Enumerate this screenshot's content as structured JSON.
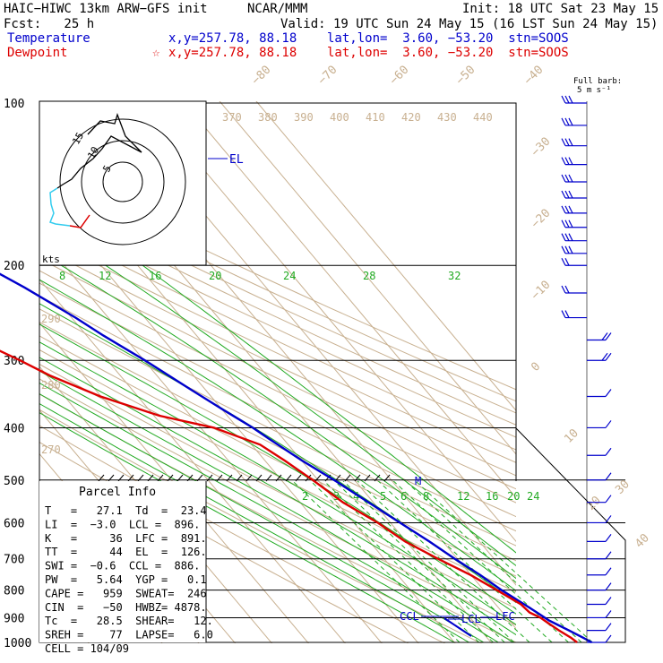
{
  "header": {
    "model": "HAIC−HIWC 13km ARW−GFS init",
    "org": "NCAR/MMM",
    "init": "Init: 18 UTC Sat 23 May 15",
    "fcst": "Fcst:   25 h",
    "valid": "Valid: 19 UTC Sun 24 May 15 (16 LST Sun 24 May 15)",
    "temp_label": "Temperature",
    "temp_loc": "x,y=257.78, 88.18    lat,lon=  3.60, −53.20  stn=SOOS",
    "dew_label": "Dewpoint",
    "dew_marker": "☆",
    "dew_loc": "x,y=257.78, 88.18    lat,lon=  3.60, −53.20  stn=SOOS"
  },
  "barb_legend": {
    "line1": "Full barb:",
    "line2": "5 m s⁻¹"
  },
  "hodograph": {
    "rings": [
      "5",
      "10",
      "15"
    ],
    "units": "kts"
  },
  "parcel_info": {
    "title": "Parcel Info",
    "rows": [
      "T   =   27.1  Td  =  23.4",
      "LI  =  −3.0  LCL =  896.",
      "K   =     36  LFC =  891.",
      "TT  =     44  EL  =  126.",
      "SWI =  −0.6  CCL =  886.",
      "PW  =   5.64  YGP =   0.1",
      "CAPE =   959  SWEAT=  246",
      "CIN  =   −50  HWBZ= 4878.",
      "Tc  =   28.5  SHEAR=   12.",
      "SREH =    77  LAPSE=   6.0",
      "CELL = 104/09"
    ]
  },
  "level_labels": {
    "el": "EL",
    "ccl": "CCL",
    "lcl": "LCL",
    "lfc": "LFC",
    "m": "M"
  },
  "chart_data": {
    "type": "line",
    "title": "",
    "xlabel": "",
    "ylabel": "",
    "pressure_ticks": [
      100,
      200,
      300,
      400,
      500,
      600,
      700,
      800,
      900,
      1000
    ],
    "isotherm_labels": [
      "−80",
      "−70",
      "−60",
      "−50",
      "−40",
      "−30",
      "−20",
      "−10",
      "0",
      "10",
      "20",
      "30",
      "40"
    ],
    "theta_labels": [
      "370",
      "380",
      "390",
      "400",
      "410",
      "420",
      "430",
      "440"
    ],
    "theta_side_labels": [
      "290",
      "280",
      "270"
    ],
    "mixing_ratio_upper": [
      "8",
      "12",
      "16",
      "20",
      "24",
      "28",
      "32"
    ],
    "mixing_ratio_lower": [
      "2",
      "3",
      "4",
      "5",
      "6",
      "8",
      "12",
      "16",
      "20",
      "24"
    ],
    "series": [
      {
        "name": "Temperature",
        "color": "#0000cc",
        "pressure": [
          1000,
          980,
          950,
          930,
          910,
          880,
          850,
          800,
          750,
          700,
          650,
          600,
          550,
          500,
          460,
          420,
          400,
          370,
          340,
          300,
          270,
          250,
          220,
          200,
          175,
          150,
          125,
          110,
          100
        ],
        "temp_c": [
          27.5,
          26.2,
          24.0,
          22.4,
          20.8,
          19.4,
          17.8,
          14.9,
          12.5,
          9.3,
          6.3,
          2.6,
          -1.3,
          -5.6,
          -9.9,
          -13.8,
          -15.8,
          -19.8,
          -23.9,
          -29.8,
          -35.4,
          -38.9,
          -45.9,
          -51.9,
          -58.8,
          -67.2,
          -76.8,
          -80.7,
          -81.0
        ]
      },
      {
        "name": "Dewpoint",
        "color": "#dd0000",
        "pressure": [
          1000,
          980,
          950,
          920,
          900,
          880,
          850,
          800,
          750,
          700,
          650,
          600,
          550,
          500,
          460,
          430,
          400,
          380,
          350,
          320,
          300,
          270,
          250,
          230,
          210,
          200,
          175,
          160,
          150,
          125,
          110,
          100
        ],
        "temp_c": [
          23.5,
          22.9,
          21.3,
          20.0,
          19.2,
          17.4,
          16.9,
          13.6,
          9.9,
          4.7,
          -0.3,
          -3.5,
          -8.3,
          -11.4,
          -14.6,
          -17.7,
          -26.4,
          -38.5,
          -50.2,
          -59.2,
          -63.9,
          -72.4,
          -73.3,
          -70.7,
          -73.8,
          -72.4,
          -73.9,
          -87.0,
          -89.6,
          -86.2,
          -84.7,
          -84.1
        ]
      }
    ],
    "wind_barbs": {
      "note": "wind profile drawn as barbs on right side",
      "pressure": [
        100,
        110,
        120,
        130,
        140,
        150,
        160,
        170,
        180,
        190,
        200,
        225,
        250,
        275,
        300,
        350,
        400,
        450,
        500,
        550,
        600,
        650,
        700,
        750,
        800,
        850,
        900,
        950,
        1000
      ]
    }
  }
}
